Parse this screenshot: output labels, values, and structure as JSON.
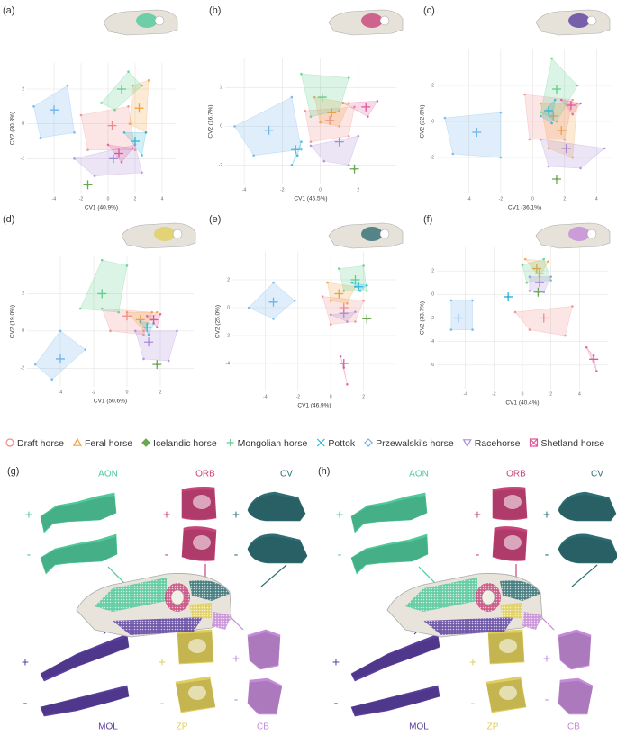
{
  "legend": {
    "entries": [
      {
        "name": "Draft horse",
        "color": "#f08a8a",
        "marker": "circle"
      },
      {
        "name": "Feral horse",
        "color": "#f0a040",
        "marker": "triangle"
      },
      {
        "name": "Icelandic horse",
        "color": "#6aa84f",
        "marker": "diamond-filled"
      },
      {
        "name": "Mongolian horse",
        "color": "#5ccf8a",
        "marker": "plus"
      },
      {
        "name": "Pottok",
        "color": "#2bb5d8",
        "marker": "x"
      },
      {
        "name": "Przewalski's horse",
        "color": "#6fb3e8",
        "marker": "diamond"
      },
      {
        "name": "Racehorse",
        "color": "#a98ad8",
        "marker": "triangle-down"
      },
      {
        "name": "Shetland horse",
        "color": "#e0569a",
        "marker": "square-x"
      }
    ]
  },
  "chart_data": [
    {
      "type": "scatter",
      "title": "(a)",
      "x_label": "CV1 (40.9%)",
      "y_label": "CV2 (30.3%)",
      "xlim": [
        -6,
        5
      ],
      "ylim": [
        -4,
        3.5
      ],
      "xticks": [
        -4,
        -2,
        0,
        2,
        4
      ],
      "yticks": [
        -2,
        0,
        2
      ],
      "grid": true,
      "series": [
        {
          "x": [
            -2,
            1.5,
            2,
            -1.5
          ],
          "y": [
            0.5,
            1,
            -1.5,
            -1.5
          ],
          "mean_x": 0.3,
          "mean_y": -0.1
        },
        {
          "x": [
            1.8,
            3,
            2.8,
            1.6
          ],
          "y": [
            2.2,
            2.5,
            -0.5,
            0
          ],
          "mean_x": 2.3,
          "mean_y": 0.9
        },
        {
          "x": [
            -1.5
          ],
          "y": [
            -3.5
          ],
          "mean_x": -1.5,
          "mean_y": -3.5
        },
        {
          "x": [
            -0.5,
            1.5,
            2.5,
            0.5
          ],
          "y": [
            1.2,
            3,
            2.2,
            0.8
          ],
          "mean_x": 1,
          "mean_y": 2
        },
        {
          "x": [
            1.2,
            2.8,
            2.5
          ],
          "y": [
            -0.5,
            -0.5,
            -1.8
          ],
          "mean_x": 2,
          "mean_y": -1
        },
        {
          "x": [
            -5.5,
            -3,
            -2.5,
            -5
          ],
          "y": [
            1,
            2.2,
            -0.5,
            -0.8
          ],
          "mean_x": -4,
          "mean_y": 0.8
        },
        {
          "x": [
            -2.5,
            2,
            2.5,
            -1
          ],
          "y": [
            -2,
            -1.2,
            -2.8,
            -3
          ],
          "mean_x": 0.4,
          "mean_y": -2
        },
        {
          "x": [
            0,
            1.8,
            1
          ],
          "y": [
            -1.2,
            -1.4,
            -2.2
          ],
          "mean_x": 0.8,
          "mean_y": -1.7
        }
      ]
    },
    {
      "type": "scatter",
      "title": "(b)",
      "x_label": "CV1 (45.5%)",
      "y_label": "CV2 (16.7%)",
      "xlim": [
        -5,
        4
      ],
      "ylim": [
        -3,
        3.5
      ],
      "xticks": [
        -4,
        -2,
        0,
        2
      ],
      "yticks": [
        -2,
        0,
        2
      ],
      "grid": true,
      "series": [
        {
          "x": [
            -0.8,
            1.8,
            1.5,
            -0.5
          ],
          "y": [
            0.8,
            1,
            -0.5,
            -0.8
          ],
          "mean_x": 0.5,
          "mean_y": 0.3
        },
        {
          "x": [
            -0.3,
            1.5,
            1,
            0
          ],
          "y": [
            1.5,
            1.2,
            0,
            0.2
          ],
          "mean_x": 0.6,
          "mean_y": 0.7
        },
        {
          "x": [
            1.8
          ],
          "y": [
            -2.2
          ],
          "mean_x": 1.8,
          "mean_y": -2.2
        },
        {
          "x": [
            -1,
            1.5,
            1,
            -0.5
          ],
          "y": [
            2.7,
            2.5,
            0.8,
            0.5
          ],
          "mean_x": 0.1,
          "mean_y": 1.5
        },
        {
          "x": [
            -1.5,
            -1,
            -1.2
          ],
          "y": [
            -2,
            -0.8,
            -1.5
          ],
          "mean_x": -1.3,
          "mean_y": -1.2
        },
        {
          "x": [
            -4.5,
            -1.5,
            -1,
            -3.5
          ],
          "y": [
            0,
            1.5,
            -1.2,
            -1.5
          ],
          "mean_x": -2.7,
          "mean_y": -0.2
        },
        {
          "x": [
            -0.5,
            2,
            1.5,
            0.2
          ],
          "y": [
            -1,
            -0.5,
            -2,
            -1.8
          ],
          "mean_x": 1,
          "mean_y": -0.8
        },
        {
          "x": [
            1.2,
            3,
            2.5
          ],
          "y": [
            1.2,
            1.3,
            0.5
          ],
          "mean_x": 2.4,
          "mean_y": 1
        }
      ]
    },
    {
      "type": "scatter",
      "title": "(c)",
      "x_label": "CV1 (36.1%)",
      "y_label": "CV2 (22.6%)",
      "xlim": [
        -6,
        5
      ],
      "ylim": [
        -4,
        4
      ],
      "xticks": [
        -4,
        -2,
        0,
        2,
        4
      ],
      "yticks": [
        -2,
        0,
        2
      ],
      "grid": true,
      "series": [
        {
          "x": [
            -0.5,
            2.5,
            2,
            -0.2
          ],
          "y": [
            1.5,
            1.2,
            -1,
            -1
          ],
          "mean_x": 1.3,
          "mean_y": 0.3
        },
        {
          "x": [
            0.5,
            2.8,
            2.5,
            1
          ],
          "y": [
            1,
            1,
            -2,
            -1.5
          ],
          "mean_x": 1.8,
          "mean_y": -0.5
        },
        {
          "x": [
            1.5
          ],
          "y": [
            -3.2
          ],
          "mean_x": 1.5,
          "mean_y": -3.2
        },
        {
          "x": [
            0.5,
            1.2,
            2.8,
            1.5
          ],
          "y": [
            0.5,
            3.5,
            2,
            0
          ],
          "mean_x": 1.5,
          "mean_y": 1.8
        },
        {
          "x": [
            0.5,
            1.4,
            1.2
          ],
          "y": [
            0.3,
            1.2,
            -0.1
          ],
          "mean_x": 1,
          "mean_y": 0.6
        },
        {
          "x": [
            -5.5,
            -2,
            -2,
            -5
          ],
          "y": [
            0.2,
            0.5,
            -2,
            -1.8
          ],
          "mean_x": -3.5,
          "mean_y": -0.6
        },
        {
          "x": [
            0.5,
            4.5,
            3,
            1
          ],
          "y": [
            -1,
            -1.5,
            -2.6,
            -2.5
          ],
          "mean_x": 2.1,
          "mean_y": -1.5
        },
        {
          "x": [
            1.8,
            3,
            2.5
          ],
          "y": [
            1.2,
            1,
            0.4
          ],
          "mean_x": 2.4,
          "mean_y": 0.9
        }
      ]
    },
    {
      "type": "scatter",
      "title": "(d)",
      "x_label": "CV1 (50.6%)",
      "y_label": "CV2 (19.0%)",
      "xlim": [
        -6,
        4
      ],
      "ylim": [
        -3,
        4
      ],
      "xticks": [
        -4,
        -2,
        0,
        2
      ],
      "yticks": [
        -2,
        0,
        2
      ],
      "grid": true,
      "series": [
        {
          "x": [
            -1.5,
            1.5,
            1,
            -1
          ],
          "y": [
            1.2,
            1,
            -0.2,
            0
          ],
          "mean_x": 0,
          "mean_y": 0.8
        },
        {
          "x": [
            0,
            1.8,
            1
          ],
          "y": [
            1,
            1,
            0
          ],
          "mean_x": 0.8,
          "mean_y": 0.6
        },
        {
          "x": [
            1.8
          ],
          "y": [
            -1.8
          ],
          "mean_x": 1.8,
          "mean_y": -1.8
        },
        {
          "x": [
            -2.8,
            -1.5,
            0,
            -0.5
          ],
          "y": [
            1.2,
            3.8,
            3.5,
            1
          ],
          "mean_x": -1.5,
          "mean_y": 2
        },
        {
          "x": [
            0.8,
            1.6,
            1.3
          ],
          "y": [
            0.5,
            0.4,
            -0.2
          ],
          "mean_x": 1.2,
          "mean_y": 0.2
        },
        {
          "x": [
            -5.5,
            -4,
            -2.5,
            -4.5
          ],
          "y": [
            -1.8,
            0,
            -1,
            -2.6
          ],
          "mean_x": -4,
          "mean_y": -1.5
        },
        {
          "x": [
            0.5,
            3,
            2.5,
            1
          ],
          "y": [
            0,
            0,
            -1.6,
            -1.5
          ],
          "mean_x": 1.3,
          "mean_y": -0.6
        },
        {
          "x": [
            1.2,
            2,
            1.8
          ],
          "y": [
            0.8,
            0.9,
            0.2
          ],
          "mean_x": 1.6,
          "mean_y": 0.6
        }
      ]
    },
    {
      "type": "scatter",
      "title": "(e)",
      "x_label": "CV1 (46.9%)",
      "y_label": "CV2 (25.0%)",
      "xlim": [
        -6,
        4
      ],
      "ylim": [
        -6,
        4
      ],
      "xticks": [
        -4,
        -2,
        0,
        2
      ],
      "yticks": [
        -4,
        -2,
        0,
        2
      ],
      "grid": true,
      "series": [
        {
          "x": [
            -0.5,
            2,
            1.5,
            0
          ],
          "y": [
            0.8,
            0.5,
            -1,
            -1.2
          ],
          "mean_x": 0.8,
          "mean_y": 0
        },
        {
          "x": [
            -0.2,
            1.5,
            1,
            0
          ],
          "y": [
            1.8,
            1.5,
            0.3,
            0.5
          ],
          "mean_x": 0.5,
          "mean_y": 1
        },
        {
          "x": [
            2.2
          ],
          "y": [
            -0.8
          ],
          "mean_x": 2.2,
          "mean_y": -0.8
        },
        {
          "x": [
            0.5,
            2,
            2.2,
            0.8
          ],
          "y": [
            2.8,
            3,
            1.2,
            1.2
          ],
          "mean_x": 1.5,
          "mean_y": 2
        },
        {
          "x": [
            1.3,
            2.2,
            1.8
          ],
          "y": [
            1.8,
            1.6,
            1.2
          ],
          "mean_x": 1.7,
          "mean_y": 1.5
        },
        {
          "x": [
            -5,
            -3.5,
            -2.2,
            -3.5
          ],
          "y": [
            0,
            1.8,
            0.5,
            -0.8
          ],
          "mean_x": -3.5,
          "mean_y": 0.4
        },
        {
          "x": [
            0,
            1.5,
            1
          ],
          "y": [
            -0.5,
            -0.3,
            -1
          ],
          "mean_x": 0.8,
          "mean_y": -0.4
        },
        {
          "x": [
            0.6,
            1,
            0.8
          ],
          "y": [
            -3.5,
            -5.5,
            -4.3
          ],
          "mean_x": 0.8,
          "mean_y": -4
        }
      ]
    },
    {
      "type": "scatter",
      "title": "(f)",
      "x_label": "CV1 (40.4%)",
      "y_label": "CV2 (33.7%)",
      "xlim": [
        -6,
        6
      ],
      "ylim": [
        -8,
        4
      ],
      "xticks": [
        -4,
        -2,
        0,
        2,
        4
      ],
      "yticks": [
        -6,
        -4,
        -2,
        0,
        2
      ],
      "grid": true,
      "series": [
        {
          "x": [
            -0.5,
            3.5,
            3,
            0.5
          ],
          "y": [
            -1.5,
            -1,
            -3.5,
            -3
          ],
          "mean_x": 1.5,
          "mean_y": -2
        },
        {
          "x": [
            0.2,
            1.8,
            1.2
          ],
          "y": [
            3,
            2.8,
            1.5
          ],
          "mean_x": 1,
          "mean_y": 2.2
        },
        {
          "x": [
            1.1
          ],
          "y": [
            0.2
          ],
          "mean_x": 1.1,
          "mean_y": 0.2
        },
        {
          "x": [
            0,
            1.5,
            2,
            0.3
          ],
          "y": [
            2.5,
            3,
            1.2,
            1
          ],
          "mean_x": 1.2,
          "mean_y": 1.8
        },
        {
          "x": [
            -1
          ],
          "y": [
            -0.2
          ],
          "mean_x": -1,
          "mean_y": -0.2
        },
        {
          "x": [
            -5,
            -3.5,
            -3.5,
            -5
          ],
          "y": [
            -0.5,
            -0.5,
            -3,
            -3
          ],
          "mean_x": -4.5,
          "mean_y": -2
        },
        {
          "x": [
            0.5,
            2,
            1.5,
            0.5
          ],
          "y": [
            1.5,
            1.5,
            0.2,
            0.3
          ],
          "mean_x": 1.2,
          "mean_y": 1
        },
        {
          "x": [
            4.5,
            5.2,
            5
          ],
          "y": [
            -4.5,
            -6.5,
            -5.2
          ],
          "mean_x": 5,
          "mean_y": -5.5
        }
      ]
    }
  ],
  "shape_panels": [
    {
      "label": "(g)",
      "signs": [
        "+",
        "-"
      ],
      "modules": [
        {
          "name": "AON",
          "color": "#4fc99a"
        },
        {
          "name": "ORB",
          "color": "#c8447a"
        },
        {
          "name": "CV",
          "color": "#2e6e73"
        },
        {
          "name": "MOL",
          "color": "#5b3fa0"
        },
        {
          "name": "ZP",
          "color": "#e0cf5c"
        },
        {
          "name": "CB",
          "color": "#c58ad8"
        }
      ]
    },
    {
      "label": "(h)",
      "signs": [
        "+",
        "-"
      ],
      "modules": [
        {
          "name": "AON",
          "color": "#4fc99a"
        },
        {
          "name": "ORB",
          "color": "#c8447a"
        },
        {
          "name": "CV",
          "color": "#2e6e73"
        },
        {
          "name": "MOL",
          "color": "#5b3fa0"
        },
        {
          "name": "ZP",
          "color": "#e0cf5c"
        },
        {
          "name": "CB",
          "color": "#c58ad8"
        }
      ]
    }
  ]
}
